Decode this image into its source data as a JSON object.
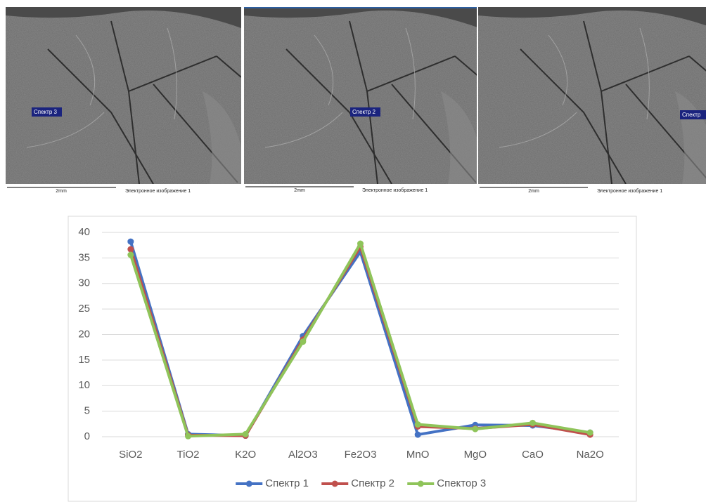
{
  "images": [
    {
      "label": "Спектр 3",
      "scale": "2mm",
      "caption": "Электронное изображение 1"
    },
    {
      "label": "Спектр 2",
      "scale": "2mm",
      "caption": "Электронное изображение 1"
    },
    {
      "label": "Спектр",
      "scale": "2mm",
      "caption": "Электронное изображение 1"
    }
  ],
  "chart_data": {
    "type": "line",
    "categories": [
      "SiO2",
      "TiO2",
      "K2O",
      "Al2O3",
      "Fe2O3",
      "MnO",
      "MgO",
      "CaO",
      "Na2O"
    ],
    "series": [
      {
        "name": "Спектр 1",
        "color": "#4472c4",
        "values": [
          38.2,
          0.5,
          0.2,
          19.7,
          36.2,
          0.4,
          2.3,
          2.2,
          0.8
        ]
      },
      {
        "name": "Спектр 2",
        "color": "#c0504d",
        "values": [
          36.7,
          0.3,
          0.2,
          19.0,
          37.2,
          2.0,
          1.6,
          2.4,
          0.4
        ]
      },
      {
        "name": "Спектор 3",
        "color": "#8fc45a",
        "values": [
          35.6,
          0.1,
          0.5,
          18.6,
          37.8,
          2.4,
          1.5,
          2.7,
          0.8
        ]
      }
    ],
    "ylim": [
      0,
      40
    ],
    "yticks": [
      0,
      5,
      10,
      15,
      20,
      25,
      30,
      35,
      40
    ],
    "grid": true,
    "legend": "bottom"
  }
}
